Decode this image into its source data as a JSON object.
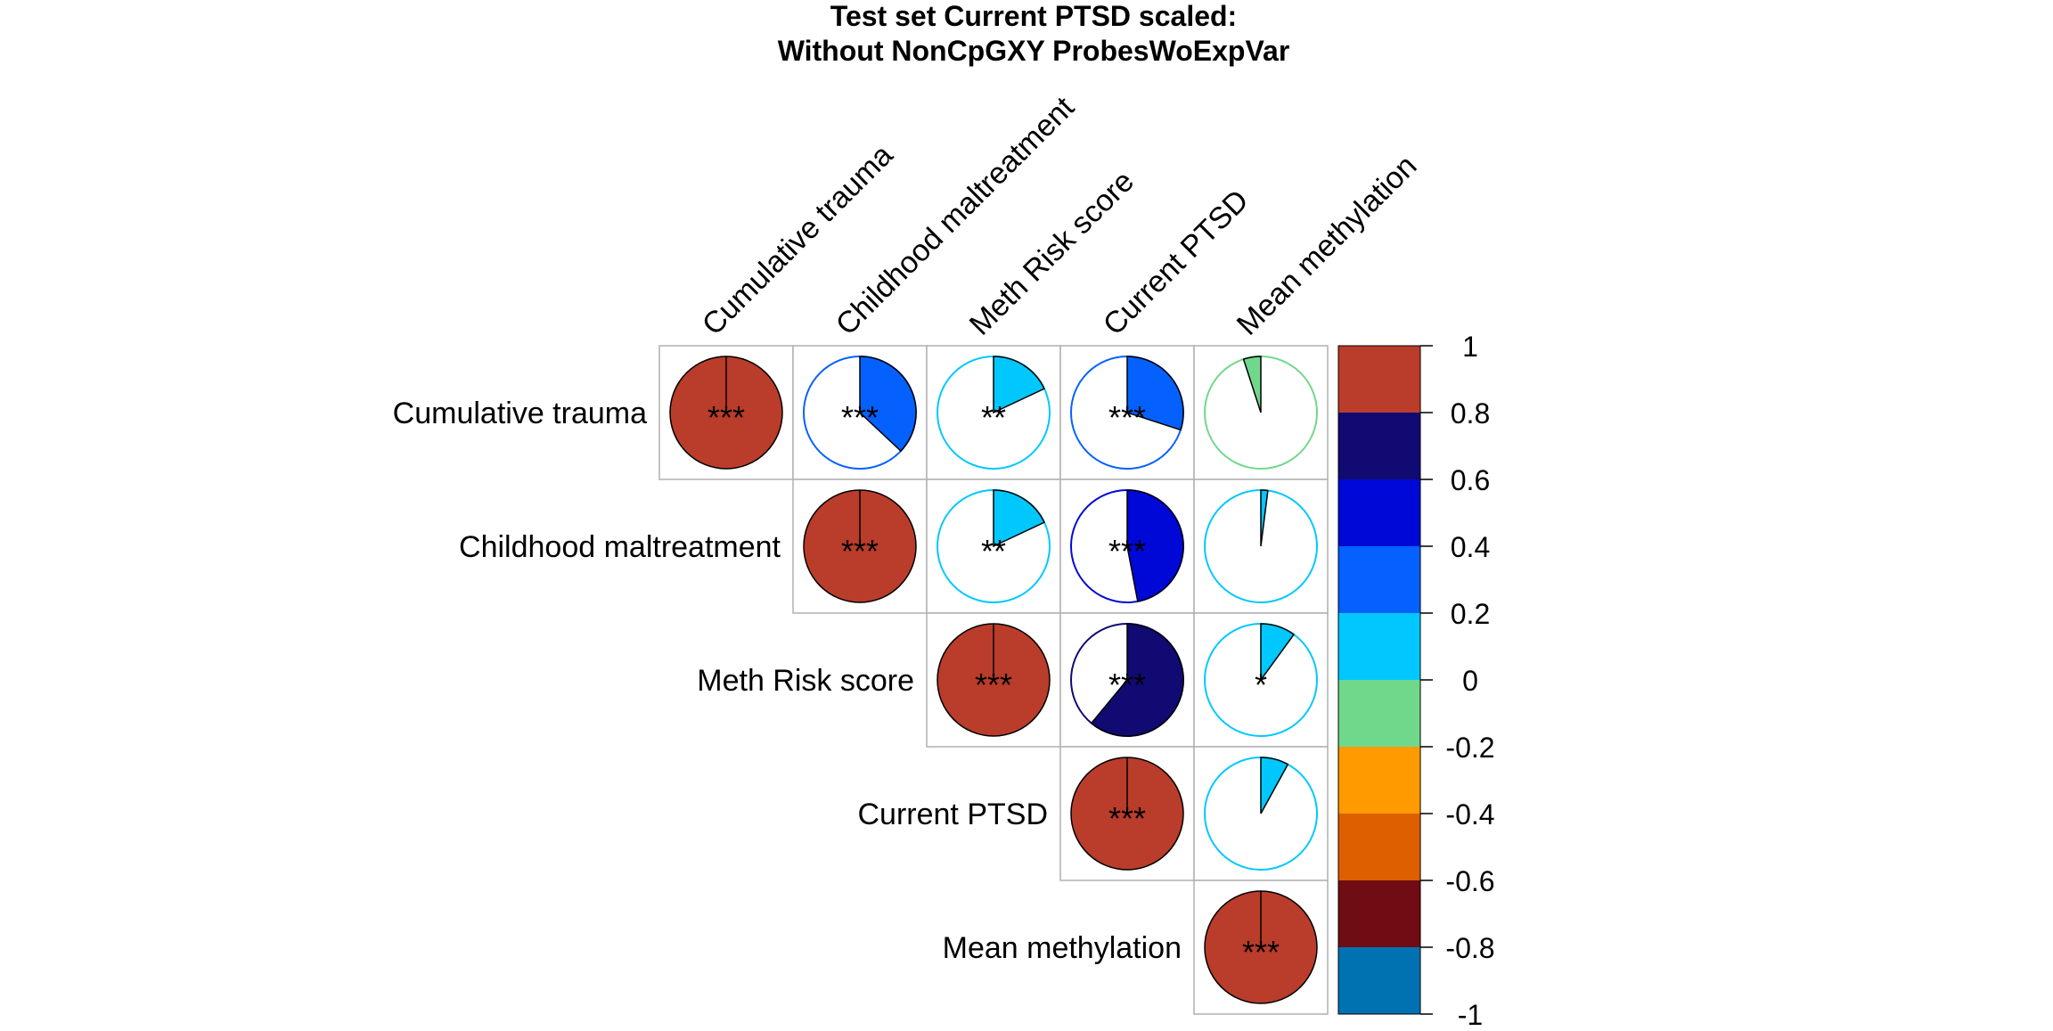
{
  "chart_data": {
    "type": "heatmap",
    "plot_style": "correlation matrix, upper triangle, pie glyphs",
    "title_lines": [
      "Test set Current PTSD scaled:",
      "Without NonCpGXY ProbesWoExpVar"
    ],
    "variables": [
      "Cumulative trauma",
      "Childhood maltreatment",
      "Meth Risk score",
      "Current PTSD",
      "Mean methylation"
    ],
    "cells": [
      {
        "row": 0,
        "col": 0,
        "r": 1.0,
        "stars": "***"
      },
      {
        "row": 0,
        "col": 1,
        "r": 0.37,
        "stars": "***"
      },
      {
        "row": 0,
        "col": 2,
        "r": 0.18,
        "stars": "**"
      },
      {
        "row": 0,
        "col": 3,
        "r": 0.3,
        "stars": "***"
      },
      {
        "row": 0,
        "col": 4,
        "r": -0.05,
        "stars": ""
      },
      {
        "row": 1,
        "col": 1,
        "r": 1.0,
        "stars": "***"
      },
      {
        "row": 1,
        "col": 2,
        "r": 0.18,
        "stars": "**"
      },
      {
        "row": 1,
        "col": 3,
        "r": 0.47,
        "stars": "***"
      },
      {
        "row": 1,
        "col": 4,
        "r": 0.02,
        "stars": ""
      },
      {
        "row": 2,
        "col": 2,
        "r": 1.0,
        "stars": "***"
      },
      {
        "row": 2,
        "col": 3,
        "r": 0.61,
        "stars": "***"
      },
      {
        "row": 2,
        "col": 4,
        "r": 0.1,
        "stars": "*"
      },
      {
        "row": 3,
        "col": 3,
        "r": 1.0,
        "stars": "***"
      },
      {
        "row": 3,
        "col": 4,
        "r": 0.08,
        "stars": ""
      },
      {
        "row": 4,
        "col": 4,
        "r": 1.0,
        "stars": "***"
      }
    ],
    "color_scale": {
      "range": [
        -1,
        1
      ],
      "bins": [
        {
          "from": -1.0,
          "to": -0.8,
          "color": "#0072B2"
        },
        {
          "from": -0.8,
          "to": -0.6,
          "color": "#6F0C14"
        },
        {
          "from": -0.6,
          "to": -0.4,
          "color": "#DD5F00"
        },
        {
          "from": -0.4,
          "to": -0.2,
          "color": "#FF9B00"
        },
        {
          "from": -0.2,
          "to": 0.0,
          "color": "#70D88B"
        },
        {
          "from": 0.0,
          "to": 0.2,
          "color": "#00C8FF"
        },
        {
          "from": 0.2,
          "to": 0.4,
          "color": "#0561FE"
        },
        {
          "from": 0.4,
          "to": 0.6,
          "color": "#0008D8"
        },
        {
          "from": 0.6,
          "to": 0.8,
          "color": "#110A72"
        },
        {
          "from": 0.8,
          "to": 1.0,
          "color": "#BA3C2A"
        }
      ],
      "tick_labels": [
        "1",
        "0.8",
        "0.6",
        "0.4",
        "0.2",
        "0",
        "-0.2",
        "-0.4",
        "-0.6",
        "-0.8",
        "-1"
      ]
    }
  }
}
